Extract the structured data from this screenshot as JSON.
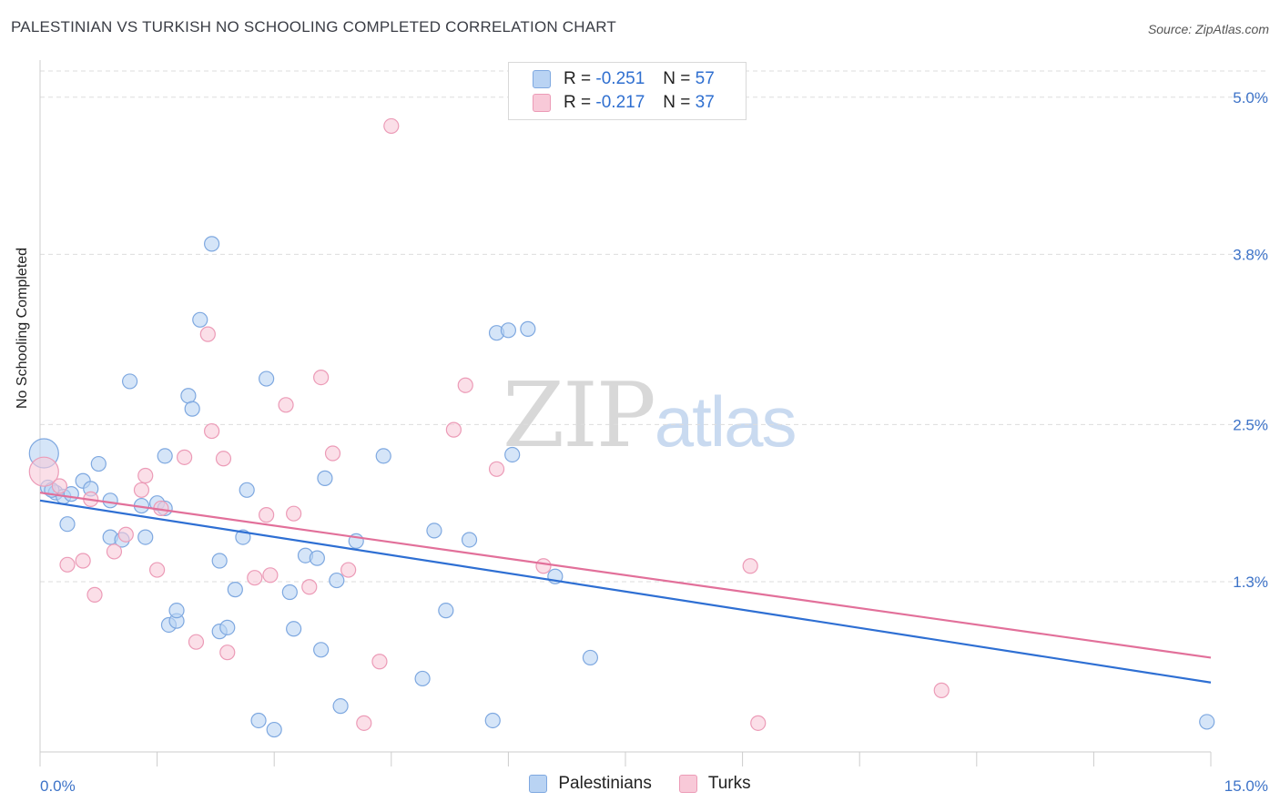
{
  "title": "PALESTINIAN VS TURKISH NO SCHOOLING COMPLETED CORRELATION CHART",
  "source": "Source: ZipAtlas.com",
  "watermark": {
    "zip": "ZIP",
    "atlas": "atlas"
  },
  "legend": {
    "rows": [
      {
        "r_label": "R = ",
        "r_value": "-0.251",
        "n_label": "N = ",
        "n_value": "57"
      },
      {
        "r_label": "R = ",
        "r_value": "-0.217",
        "n_label": "N = ",
        "n_value": "37"
      }
    ]
  },
  "colors": {
    "palestinians_fill": "#b9d3f3",
    "palestinians_stroke": "#7ea8e0",
    "palestinians_line": "#2e6fd3",
    "turks_fill": "#f8c9d8",
    "turks_stroke": "#ec9bb7",
    "turks_line": "#e2709a",
    "axis_label": "#3d73c8",
    "grid": "#dddddd"
  },
  "chart_data": {
    "type": "scatter",
    "title": "PALESTINIAN VS TURKISH NO SCHOOLING COMPLETED CORRELATION CHART",
    "xlabel": "",
    "ylabel": "No Schooling Completed",
    "xlim": [
      0,
      15
    ],
    "ylim": [
      0,
      5.2
    ],
    "x_tick_labels": [
      "0.0%",
      "15.0%"
    ],
    "y_ticks": [
      1.3,
      2.5,
      3.8,
      5.0
    ],
    "y_tick_labels": [
      "1.3%",
      "2.5%",
      "3.8%",
      "5.0%"
    ],
    "series": [
      {
        "name": "Palestinians",
        "r": -0.251,
        "n": 57,
        "trend": {
          "x": [
            0,
            15
          ],
          "y": [
            1.92,
            0.53
          ]
        },
        "points": [
          [
            0.05,
            2.28
          ],
          [
            0.1,
            2.02
          ],
          [
            0.2,
            1.98
          ],
          [
            0.3,
            1.95
          ],
          [
            0.4,
            1.97
          ],
          [
            0.55,
            2.07
          ],
          [
            0.35,
            1.74
          ],
          [
            0.65,
            2.01
          ],
          [
            0.75,
            2.2
          ],
          [
            0.9,
            1.92
          ],
          [
            0.9,
            1.64
          ],
          [
            1.05,
            1.62
          ],
          [
            1.15,
            2.83
          ],
          [
            1.3,
            1.88
          ],
          [
            1.35,
            1.64
          ],
          [
            1.5,
            1.9
          ],
          [
            1.6,
            2.26
          ],
          [
            1.6,
            1.86
          ],
          [
            1.65,
            0.97
          ],
          [
            1.75,
            1.0
          ],
          [
            1.75,
            1.08
          ],
          [
            1.9,
            2.72
          ],
          [
            1.95,
            2.62
          ],
          [
            2.05,
            3.3
          ],
          [
            2.2,
            3.88
          ],
          [
            2.3,
            1.46
          ],
          [
            2.3,
            0.92
          ],
          [
            2.4,
            0.95
          ],
          [
            2.5,
            1.24
          ],
          [
            2.6,
            1.64
          ],
          [
            2.65,
            2.0
          ],
          [
            2.8,
            0.24
          ],
          [
            2.9,
            2.85
          ],
          [
            3.0,
            0.17
          ],
          [
            3.2,
            1.22
          ],
          [
            3.25,
            0.94
          ],
          [
            3.4,
            1.5
          ],
          [
            3.55,
            1.48
          ],
          [
            3.6,
            0.78
          ],
          [
            3.65,
            2.09
          ],
          [
            3.8,
            1.31
          ],
          [
            3.85,
            0.35
          ],
          [
            4.05,
            1.61
          ],
          [
            4.4,
            2.26
          ],
          [
            4.9,
            0.56
          ],
          [
            5.05,
            1.69
          ],
          [
            5.2,
            1.08
          ],
          [
            5.5,
            1.62
          ],
          [
            5.8,
            0.24
          ],
          [
            5.85,
            3.2
          ],
          [
            6.0,
            3.22
          ],
          [
            6.05,
            2.27
          ],
          [
            6.25,
            3.23
          ],
          [
            6.6,
            1.34
          ],
          [
            7.05,
            0.72
          ],
          [
            14.95,
            0.23
          ],
          [
            0.15,
            2.0
          ]
        ]
      },
      {
        "name": "Turks",
        "r": -0.217,
        "n": 37,
        "trend": {
          "x": [
            0,
            15
          ],
          "y": [
            1.98,
            0.72
          ]
        },
        "points": [
          [
            0.05,
            2.14
          ],
          [
            0.25,
            2.03
          ],
          [
            0.35,
            1.43
          ],
          [
            0.55,
            1.46
          ],
          [
            0.65,
            1.93
          ],
          [
            0.7,
            1.2
          ],
          [
            0.95,
            1.53
          ],
          [
            1.1,
            1.66
          ],
          [
            1.3,
            2.0
          ],
          [
            1.35,
            2.11
          ],
          [
            1.5,
            1.39
          ],
          [
            1.55,
            1.86
          ],
          [
            1.85,
            2.25
          ],
          [
            2.0,
            0.84
          ],
          [
            2.15,
            3.19
          ],
          [
            2.2,
            2.45
          ],
          [
            2.35,
            2.24
          ],
          [
            2.4,
            0.76
          ],
          [
            2.75,
            1.33
          ],
          [
            2.9,
            1.81
          ],
          [
            2.95,
            1.35
          ],
          [
            3.15,
            2.65
          ],
          [
            3.25,
            1.82
          ],
          [
            3.45,
            1.26
          ],
          [
            3.6,
            2.86
          ],
          [
            3.75,
            2.28
          ],
          [
            3.95,
            1.39
          ],
          [
            4.15,
            0.22
          ],
          [
            4.35,
            0.69
          ],
          [
            4.5,
            4.78
          ],
          [
            5.3,
            2.46
          ],
          [
            5.45,
            2.8
          ],
          [
            5.85,
            2.16
          ],
          [
            6.45,
            1.42
          ],
          [
            9.1,
            1.42
          ],
          [
            9.2,
            0.22
          ],
          [
            11.55,
            0.47
          ]
        ]
      }
    ]
  }
}
